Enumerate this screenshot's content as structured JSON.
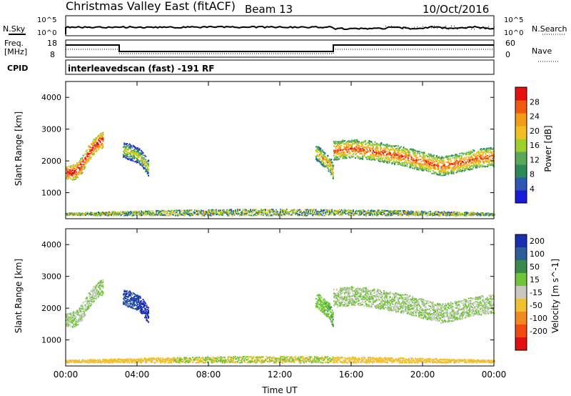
{
  "header": {
    "title": "Christmas Valley East (fitACF)",
    "beam": "Beam 13",
    "date": "10/Oct/2016"
  },
  "strips": {
    "nsky_label": "N.Sky",
    "nsearch_label": "N.Search",
    "freq_label": "Freq.",
    "freq_unit": "[MHz]",
    "nave_label": "Nave",
    "cpid_label": "CPID",
    "cpid_text": "interleavedscan (fast) -191 RF",
    "noise_ticks": [
      "10^5",
      "10^0"
    ],
    "freq_ticks": [
      "18",
      "8"
    ],
    "nave_ticks": [
      "60",
      "0"
    ]
  },
  "chart_data": [
    {
      "type": "heatmap",
      "panel": "power",
      "ylabel": "Slant Range [km]",
      "xlabel": "Time UT",
      "colorbar_label": "Power [dB]",
      "ylim": [
        180,
        4500
      ],
      "xlim": [
        0,
        24
      ],
      "x_ticks": [
        "00:00",
        "04:00",
        "08:00",
        "12:00",
        "16:00",
        "20:00",
        "00:00"
      ],
      "y_ticks": [
        1000,
        2000,
        3000,
        4000
      ],
      "colorbar_ticks": [
        4,
        8,
        12,
        16,
        20,
        24,
        28
      ],
      "regions": [
        {
          "name": "early-arc",
          "t": [
            0.0,
            0.3,
            0.6,
            0.9,
            1.2,
            1.5,
            1.8,
            2.1
          ],
          "range": [
            1650,
            1650,
            1700,
            1900,
            2200,
            2450,
            2600,
            2700
          ],
          "power": 24
        },
        {
          "name": "mid-arc",
          "t": [
            3.2,
            3.6,
            4.0,
            4.3,
            4.6
          ],
          "range": [
            2350,
            2300,
            2200,
            2050,
            1800
          ],
          "power": 12
        },
        {
          "name": "pre-16-arc",
          "t": [
            14.0,
            14.4,
            14.8,
            15.0
          ],
          "range": [
            2300,
            2100,
            1900,
            1600
          ],
          "power": 16
        },
        {
          "name": "late-band",
          "t": [
            15.0,
            16.0,
            17.0,
            18.0,
            19.0,
            20.0,
            21.0,
            22.0,
            23.0,
            24.0
          ],
          "range": [
            2350,
            2400,
            2350,
            2250,
            2150,
            2000,
            1850,
            1950,
            2100,
            2150
          ],
          "power": 20
        },
        {
          "name": "ground-scatter",
          "t": [
            0.0,
            24.0
          ],
          "range": [
            300,
            500
          ],
          "power": 10
        }
      ]
    },
    {
      "type": "heatmap",
      "panel": "velocity",
      "ylabel": "Slant Range [km]",
      "xlabel": "Time UT",
      "colorbar_label": "Velocity [m s^-1]",
      "ylim": [
        180,
        4500
      ],
      "xlim": [
        0,
        24
      ],
      "x_ticks": [
        "00:00",
        "04:00",
        "08:00",
        "12:00",
        "16:00",
        "20:00",
        "00:00"
      ],
      "y_ticks": [
        1000,
        2000,
        3000,
        4000
      ],
      "colorbar_ticks": [
        200,
        100,
        50,
        15,
        -15,
        -50,
        -100,
        -200
      ],
      "regions": [
        {
          "name": "early-arc",
          "velocity": 0
        },
        {
          "name": "mid-arc",
          "velocity": 150
        },
        {
          "name": "pre-16-arc",
          "velocity": 30
        },
        {
          "name": "late-band",
          "velocity": 0
        },
        {
          "name": "ground-scatter",
          "velocity": -40
        }
      ]
    }
  ],
  "colors": {
    "power_scale": [
      "#1a1adb",
      "#2c57b5",
      "#2b8a5a",
      "#5aa85a",
      "#9bd12a",
      "#f0c020",
      "#f29d18",
      "#f05a10",
      "#e61010"
    ],
    "velocity_scale": [
      "#1a2fb0",
      "#2a5f9a",
      "#3a8a4f",
      "#70c43a",
      "#c8c8c0",
      "#f0c030",
      "#f08a20",
      "#f04a10",
      "#e01010"
    ],
    "ground_scatter": "#c8c8c0"
  }
}
